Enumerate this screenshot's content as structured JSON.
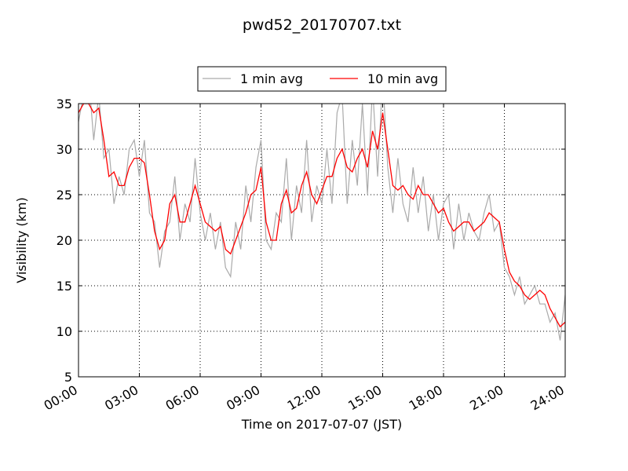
{
  "chart_data": {
    "type": "line",
    "title": "pwd52_20170707.txt",
    "xlabel": "Time on 2017-07-07 (JST)",
    "ylabel": "Visibility (km)",
    "x": [
      0,
      0.25,
      0.5,
      0.75,
      1,
      1.25,
      1.5,
      1.75,
      2,
      2.25,
      2.5,
      2.75,
      3,
      3.25,
      3.5,
      3.75,
      4,
      4.25,
      4.5,
      4.75,
      5,
      5.25,
      5.5,
      5.75,
      6,
      6.25,
      6.5,
      6.75,
      7,
      7.25,
      7.5,
      7.75,
      8,
      8.25,
      8.5,
      8.75,
      9,
      9.25,
      9.5,
      9.75,
      10,
      10.25,
      10.5,
      10.75,
      11,
      11.25,
      11.5,
      11.75,
      12,
      12.25,
      12.5,
      12.75,
      13,
      13.25,
      13.5,
      13.75,
      14,
      14.25,
      14.5,
      14.75,
      15,
      15.25,
      15.5,
      15.75,
      16,
      16.25,
      16.5,
      16.75,
      17,
      17.25,
      17.5,
      17.75,
      18,
      18.25,
      18.5,
      18.75,
      19,
      19.25,
      19.5,
      19.75,
      20,
      20.25,
      20.5,
      20.75,
      21,
      21.25,
      21.5,
      21.75,
      22,
      22.25,
      22.5,
      22.75,
      23,
      23.25,
      23.5,
      23.75,
      24
    ],
    "series": [
      {
        "name": "1 min avg",
        "color": "#aaaaaa",
        "values": [
          33,
          36,
          38,
          31,
          36,
          29,
          30,
          24,
          27,
          25,
          30,
          31,
          27,
          31,
          23,
          22,
          17,
          21,
          22,
          27,
          20,
          24,
          22,
          29,
          23,
          20,
          23,
          19,
          22,
          17,
          16,
          22,
          19,
          26,
          22,
          28,
          31,
          20,
          19,
          23,
          22,
          29,
          20,
          26,
          23,
          31,
          22,
          26,
          24,
          30,
          24,
          34,
          36,
          24,
          31,
          26,
          35,
          25,
          37,
          27,
          38,
          28,
          23,
          29,
          24,
          22,
          28,
          23,
          27,
          21,
          25,
          20,
          24,
          25,
          19,
          24,
          20,
          23,
          21,
          20,
          23,
          25,
          21,
          22,
          17,
          16,
          14,
          16,
          13,
          14,
          15,
          13,
          13,
          11,
          12,
          9,
          14
        ]
      },
      {
        "name": "10 min avg",
        "color": "#ff0000",
        "values": [
          34,
          35,
          35,
          34,
          34.5,
          31,
          27,
          27.5,
          26,
          26,
          28,
          29,
          29,
          28.5,
          25,
          21,
          19,
          20,
          24,
          25,
          22,
          22,
          24,
          26,
          24,
          22,
          21.5,
          21,
          21.5,
          19,
          18.5,
          20,
          21.5,
          23,
          25,
          25.5,
          28,
          22,
          20,
          20,
          24,
          25.5,
          23,
          23.5,
          26,
          27.5,
          25,
          24,
          25.5,
          27,
          27,
          29,
          30,
          28,
          27.5,
          29,
          30,
          28,
          32,
          30,
          34,
          30,
          26,
          25.5,
          26,
          25,
          24.5,
          26,
          25,
          25,
          24,
          23,
          23.5,
          22,
          21,
          21.5,
          22,
          22,
          21,
          21.5,
          22,
          23,
          22.5,
          22,
          19,
          16.5,
          15.5,
          15,
          14,
          13.5,
          14,
          14.5,
          14,
          12.5,
          11.5,
          10.5,
          11
        ]
      }
    ],
    "xlim": [
      0,
      24
    ],
    "xticks": [
      {
        "value": 0,
        "label": "00:00"
      },
      {
        "value": 3,
        "label": "03:00"
      },
      {
        "value": 6,
        "label": "06:00"
      },
      {
        "value": 9,
        "label": "09:00"
      },
      {
        "value": 12,
        "label": "12:00"
      },
      {
        "value": 15,
        "label": "15:00"
      },
      {
        "value": 18,
        "label": "18:00"
      },
      {
        "value": 21,
        "label": "21:00"
      },
      {
        "value": 24,
        "label": "24:00"
      }
    ],
    "ylim": [
      5,
      35
    ],
    "yticks": [
      5,
      10,
      15,
      20,
      25,
      30,
      35
    ],
    "grid": true,
    "legend": "top"
  }
}
